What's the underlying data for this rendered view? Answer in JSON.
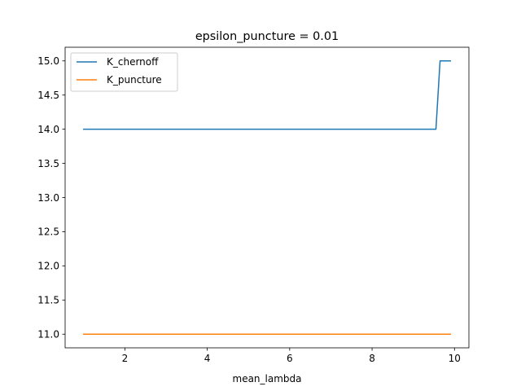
{
  "chart_data": {
    "type": "line",
    "title": "epsilon_puncture = 0.01",
    "xlabel": "mean_lambda",
    "ylabel": "",
    "xlim": [
      0.55,
      10.35
    ],
    "ylim": [
      10.8,
      15.2
    ],
    "xticks": [
      2,
      4,
      6,
      8,
      10
    ],
    "yticks": [
      11.0,
      11.5,
      12.0,
      12.5,
      13.0,
      13.5,
      14.0,
      14.5,
      15.0
    ],
    "xtick_labels": [
      "2",
      "4",
      "6",
      "8",
      "10"
    ],
    "ytick_labels": [
      "11.0",
      "11.5",
      "12.0",
      "12.5",
      "13.0",
      "13.5",
      "14.0",
      "14.5",
      "15.0"
    ],
    "grid": false,
    "legend_position": "top-left",
    "series": [
      {
        "name": "K_chernoff",
        "color": "#1f77b4",
        "x": [
          1.0,
          9.55,
          9.65,
          9.9
        ],
        "y": [
          14,
          14,
          15,
          15
        ]
      },
      {
        "name": "K_puncture",
        "color": "#ff7f0e",
        "x": [
          1.0,
          9.9
        ],
        "y": [
          11,
          11
        ]
      }
    ]
  }
}
